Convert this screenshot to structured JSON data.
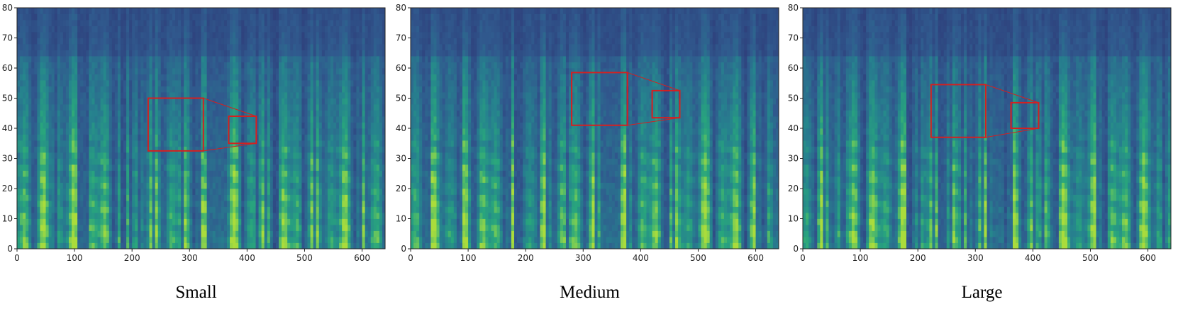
{
  "chart_data": [
    {
      "type": "heatmap",
      "title": "Small",
      "xlim": [
        0,
        640
      ],
      "ylim": [
        0,
        80
      ],
      "x_ticks": [
        "0",
        "100",
        "200",
        "300",
        "400",
        "500",
        "600"
      ],
      "y_ticks": [
        "0",
        "10",
        "20",
        "30",
        "40",
        "50",
        "60",
        "70",
        "80"
      ],
      "colormap": "viridis",
      "zoom_region": {
        "x": [
          228,
          324
        ],
        "y": [
          32.5,
          50
        ]
      },
      "zoom_inset": {
        "x": [
          368,
          416
        ],
        "y": [
          35,
          44
        ]
      }
    },
    {
      "type": "heatmap",
      "title": "Medium",
      "xlim": [
        0,
        640
      ],
      "ylim": [
        0,
        80
      ],
      "x_ticks": [
        "0",
        "100",
        "200",
        "300",
        "400",
        "500",
        "600"
      ],
      "y_ticks": [
        "0",
        "10",
        "20",
        "30",
        "40",
        "50",
        "60",
        "70",
        "80"
      ],
      "colormap": "viridis",
      "zoom_region": {
        "x": [
          280,
          377
        ],
        "y": [
          41,
          58.5
        ]
      },
      "zoom_inset": {
        "x": [
          420,
          468
        ],
        "y": [
          43.5,
          52.5
        ]
      }
    },
    {
      "type": "heatmap",
      "title": "Large",
      "xlim": [
        0,
        640
      ],
      "ylim": [
        0,
        80
      ],
      "x_ticks": [
        "0",
        "100",
        "200",
        "300",
        "400",
        "500",
        "600"
      ],
      "y_ticks": [
        "0",
        "10",
        "20",
        "30",
        "40",
        "50",
        "60",
        "70",
        "80"
      ],
      "colormap": "viridis",
      "zoom_region": {
        "x": [
          223,
          318
        ],
        "y": [
          37,
          54.5
        ]
      },
      "zoom_inset": {
        "x": [
          362,
          410
        ],
        "y": [
          40,
          48.5
        ]
      }
    }
  ],
  "colors": {
    "low": "#2e4d8c",
    "mid": "#2a8c8a",
    "high": "#8fd544",
    "zoom_box": "#d42020"
  }
}
